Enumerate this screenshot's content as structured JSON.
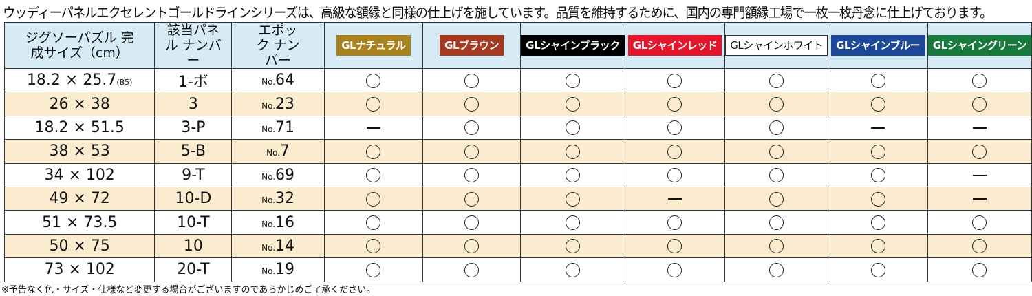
{
  "title": "ウッディーパネルエクセレントゴールドラインシリーズは、高級な額縁と同様の仕上げを施しています。品質を維持するために、国内の専門額縁工場で一枚一枚丹念に仕上げております。",
  "headers": {
    "size": "ジグソーパズル 完成サイズ（cm）",
    "panel": "該当パネル ナンバー",
    "epoch": "エポック ナンバー"
  },
  "colors": [
    {
      "label": "GLナチュラル",
      "bg": "#a8821f",
      "fg": "#ffffff"
    },
    {
      "label": "GLブラウン",
      "bg": "#a53a23",
      "fg": "#ffffff"
    },
    {
      "label": "GLシャインブラック",
      "bg": "#000000",
      "fg": "#ffffff"
    },
    {
      "label": "GLシャインレッド",
      "bg": "#e4162b",
      "fg": "#ffffff"
    },
    {
      "label": "GLシャインホワイト",
      "bg": "#ffffff",
      "fg": "#111111"
    },
    {
      "label": "GLシャインブルー",
      "bg": "#1d4797",
      "fg": "#ffffff"
    },
    {
      "label": "GLシャイングリーン",
      "bg": "#177a3c",
      "fg": "#ffffff"
    }
  ],
  "no_prefix": "No.",
  "rows": [
    {
      "size": "18.2 × 25.7",
      "note": "(B5)",
      "panel": "1-ボ",
      "epoch": "64",
      "avail": [
        "○",
        "○",
        "○",
        "○",
        "○",
        "○",
        "○"
      ]
    },
    {
      "size": "26 × 38",
      "panel": "3",
      "epoch": "23",
      "avail": [
        "○",
        "○",
        "○",
        "○",
        "○",
        "○",
        "○"
      ]
    },
    {
      "size": "18.2 × 51.5",
      "panel": "3-P",
      "epoch": "71",
      "avail": [
        "—",
        "○",
        "○",
        "○",
        "○",
        "—",
        "—"
      ]
    },
    {
      "size": "38 × 53",
      "panel": "5-B",
      "epoch": "7",
      "avail": [
        "○",
        "○",
        "○",
        "○",
        "○",
        "○",
        "○"
      ]
    },
    {
      "size": "34 × 102",
      "panel": "9-T",
      "epoch": "69",
      "avail": [
        "○",
        "○",
        "○",
        "○",
        "○",
        "○",
        "—"
      ]
    },
    {
      "size": "49 × 72",
      "panel": "10-D",
      "epoch": "32",
      "avail": [
        "○",
        "○",
        "○",
        "—",
        "○",
        "○",
        "—"
      ]
    },
    {
      "size": "51 × 73.5",
      "panel": "10-T",
      "epoch": "16",
      "avail": [
        "○",
        "○",
        "○",
        "○",
        "○",
        "○",
        "○"
      ]
    },
    {
      "size": "50 × 75",
      "panel": "10",
      "epoch": "14",
      "avail": [
        "○",
        "○",
        "○",
        "○",
        "○",
        "○",
        "○"
      ]
    },
    {
      "size": "73 × 102",
      "panel": "20-T",
      "epoch": "19",
      "avail": [
        "○",
        "○",
        "○",
        "○",
        "○",
        "○",
        "○"
      ]
    }
  ],
  "footnote": "※予告なく色・サイズ・仕様など変更する場合がございますのであらかじめご了承ください。"
}
